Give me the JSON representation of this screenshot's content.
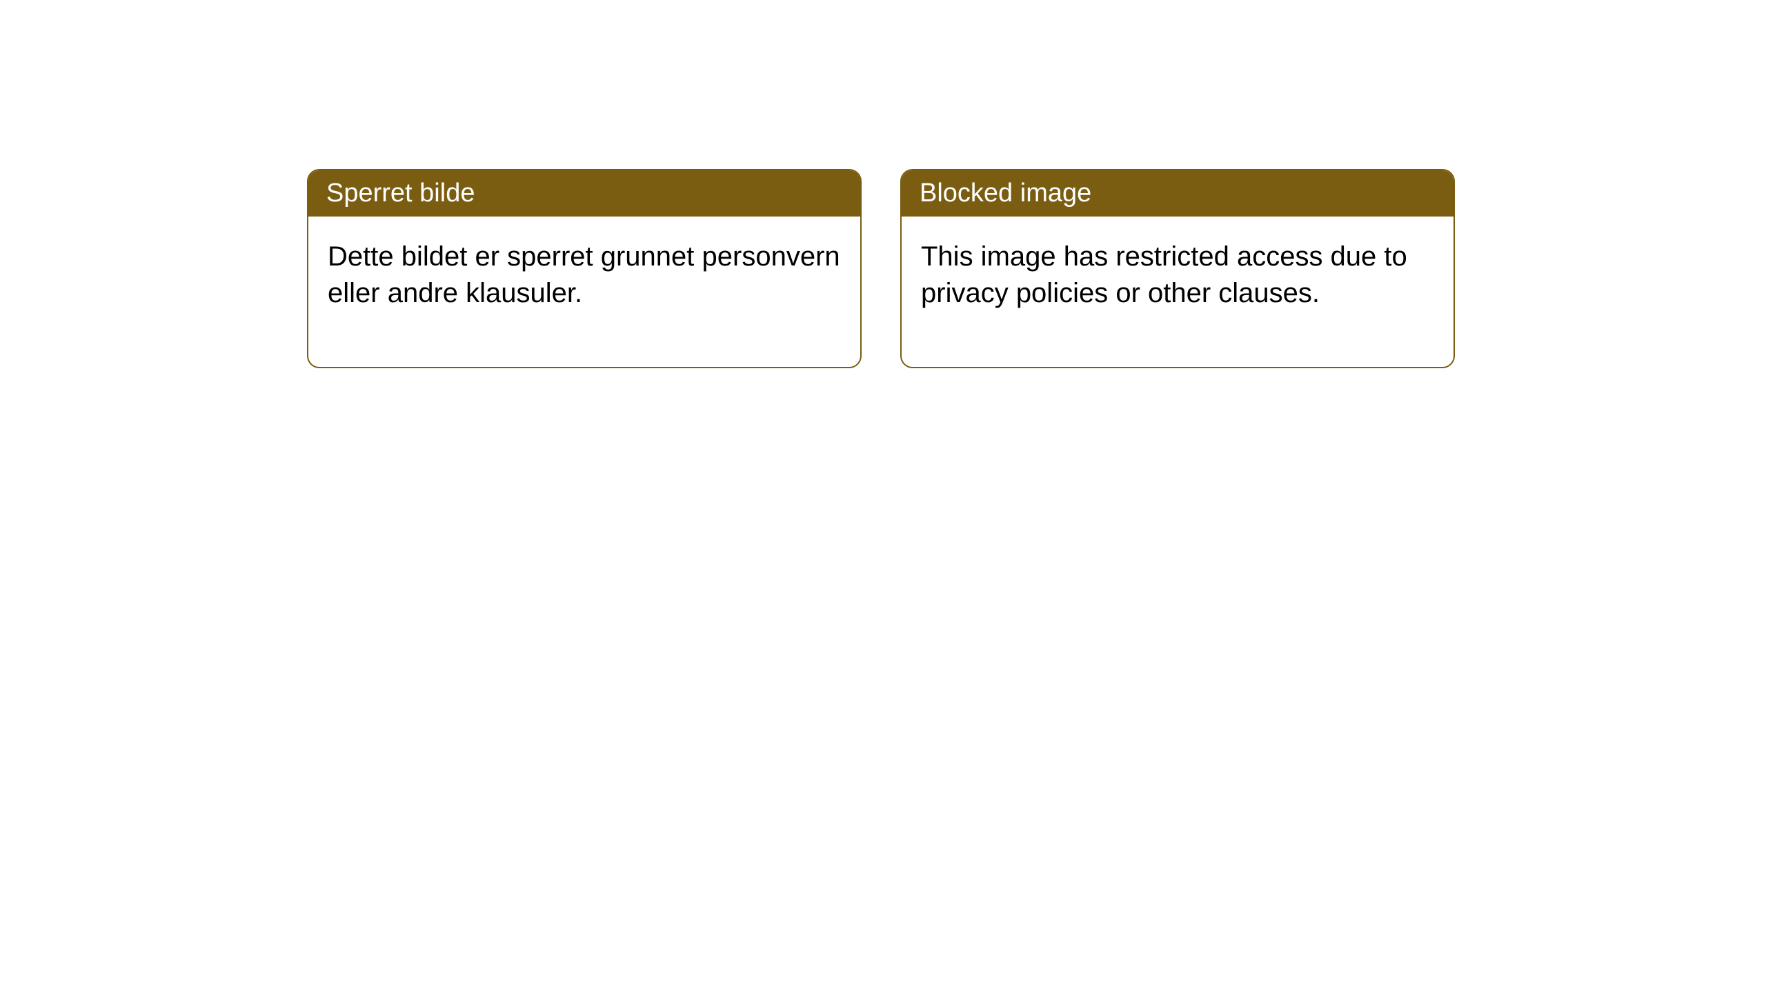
{
  "cards": [
    {
      "title": "Sperret bilde",
      "body": "Dette bildet er sperret grunnet personvern eller andre klausuler."
    },
    {
      "title": "Blocked image",
      "body": "This image has restricted access due to privacy policies or other clauses."
    }
  ],
  "style": {
    "header_bg": "#7a5d11",
    "header_text_color": "#ffffff",
    "border_color": "#7a5d11",
    "body_bg": "#ffffff",
    "body_text_color": "#000000",
    "border_radius": 18,
    "header_fontsize": 38,
    "body_fontsize": 40
  }
}
